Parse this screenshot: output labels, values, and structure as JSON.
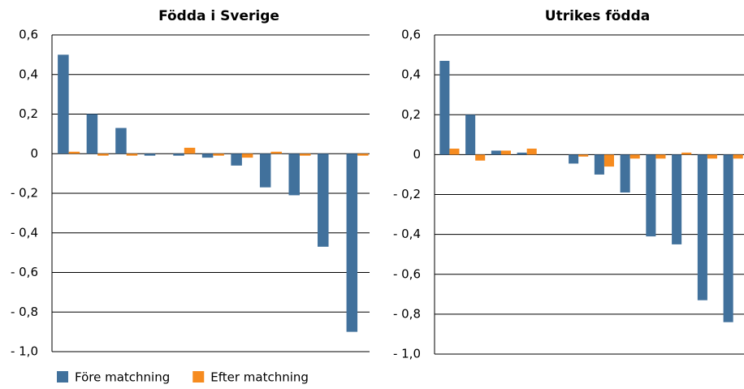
{
  "chart_data": [
    {
      "type": "bar",
      "title": "Födda i Sverige",
      "categories": [
        null,
        null,
        null,
        null,
        null,
        null,
        null,
        null,
        null,
        null,
        null
      ],
      "series": [
        {
          "name": "Före matchning",
          "color": "#41719c",
          "values": [
            0.5,
            0.2,
            0.13,
            -0.01,
            -0.01,
            -0.02,
            -0.06,
            -0.17,
            -0.21,
            -0.47,
            -0.9
          ]
        },
        {
          "name": "Efter matchning",
          "color": "#f68b1f",
          "values": [
            0.01,
            -0.01,
            -0.01,
            0,
            0.03,
            -0.01,
            -0.02,
            0.01,
            -0.01,
            0,
            -0.01
          ]
        }
      ],
      "ylim": [
        -1.0,
        0.6
      ],
      "yticks": [
        {
          "value": 0.6,
          "label": "0,6"
        },
        {
          "value": 0.4,
          "label": "0,4"
        },
        {
          "value": 0.2,
          "label": "0,2"
        },
        0,
        {
          "value": -0.2,
          "label": "- 0,2"
        },
        {
          "value": -0.4,
          "label": "- 0,4"
        },
        {
          "value": -0.6,
          "label": "- 0,6"
        },
        {
          "value": -0.8,
          "label": "- 0,8"
        },
        {
          "value": -1.0,
          "label": "- 1,0"
        }
      ],
      "grid": true
    },
    {
      "type": "bar",
      "title": "Utrikes födda",
      "categories": [
        null,
        null,
        null,
        null,
        null,
        null,
        null,
        null,
        null,
        null,
        null,
        null
      ],
      "series": [
        {
          "color": "#41719c",
          "values": [
            0.47,
            0.2,
            0.02,
            0.01,
            0,
            -0.045,
            -0.1,
            -0.19,
            -0.41,
            -0.45,
            -0.73,
            -0.84
          ]
        },
        {
          "color": "#f68b1f",
          "values": [
            0.03,
            -0.03,
            0.02,
            0.03,
            0,
            -0.01,
            -0.06,
            -0.02,
            -0.02,
            0.01,
            -0.02,
            -0.02
          ]
        }
      ],
      "ylim": [
        -1.0,
        0.6
      ],
      "yticks": [
        {
          "value": 0.6,
          "label": "0,6"
        },
        {
          "value": 0.4,
          "label": "0,4"
        },
        {
          "value": 0.2,
          "label": "0,2"
        },
        0,
        {
          "value": -0.2,
          "label": "- 0,2"
        },
        {
          "value": -0.4,
          "label": "- 0,4"
        },
        {
          "value": -0.6,
          "label": "- 0,6"
        },
        {
          "value": -0.8,
          "label": "- 0,8"
        },
        {
          "value": -1.0,
          "label": "- 1,0"
        }
      ],
      "grid": true
    }
  ]
}
